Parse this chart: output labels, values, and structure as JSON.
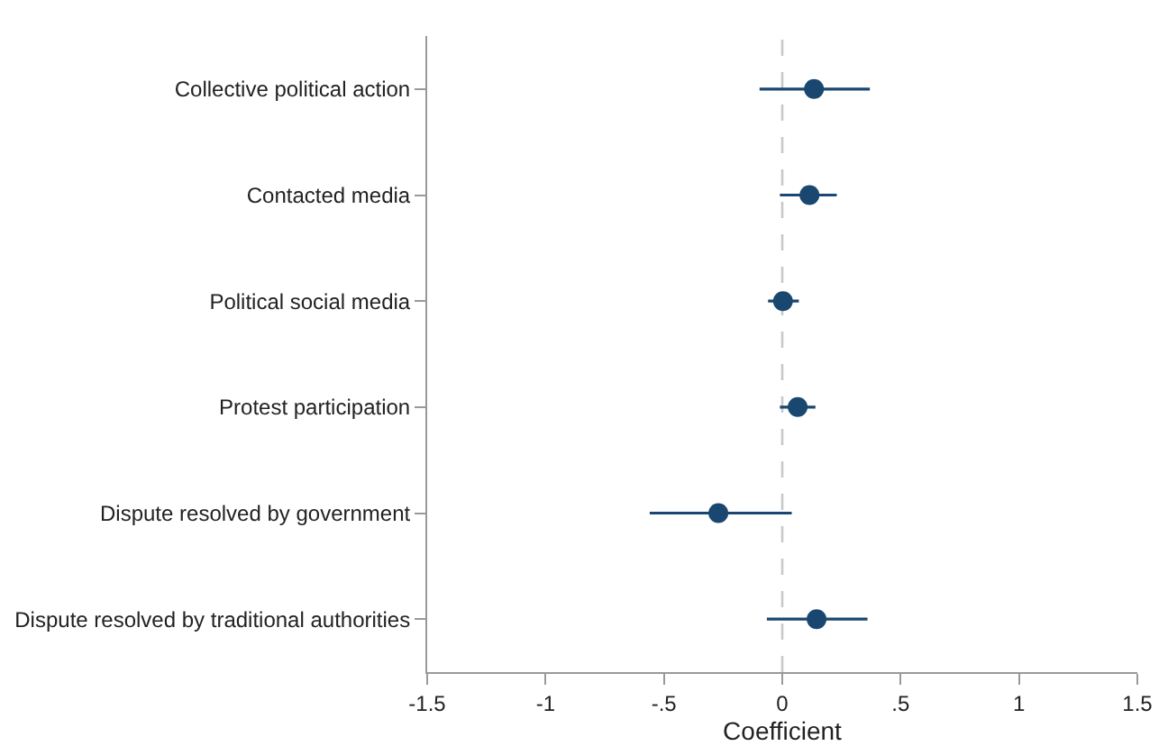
{
  "chart_data": {
    "type": "scatter",
    "orientation": "horizontal",
    "xlabel": "Coefficient",
    "categories": [
      "Collective political action",
      "Contacted media",
      "Political social media",
      "Protest participation",
      "Dispute resolved by government",
      "Dispute resolved by traditional authorities"
    ],
    "color": "#1a476f",
    "values": [
      0.134,
      0.115,
      0.003,
      0.065,
      -0.27,
      0.145
    ],
    "errors": [
      [
        -0.096,
        0.37
      ],
      [
        -0.01,
        0.23
      ],
      [
        -0.06,
        0.07
      ],
      [
        -0.01,
        0.14
      ],
      [
        -0.56,
        0.04
      ],
      [
        -0.065,
        0.36
      ]
    ],
    "xlim": [
      -1.5,
      1.5
    ],
    "xticks": [
      -1.5,
      -1,
      {
        "value": -0.5,
        "label": "-.5"
      },
      0,
      {
        "value": 0.5,
        "label": ".5"
      },
      1,
      1.5
    ],
    "ref_lines": [
      {
        "axis": "x",
        "value": 0,
        "color": "#c8c8c8",
        "line_style": "dashed"
      }
    ],
    "marker": "circle",
    "grid": false
  }
}
